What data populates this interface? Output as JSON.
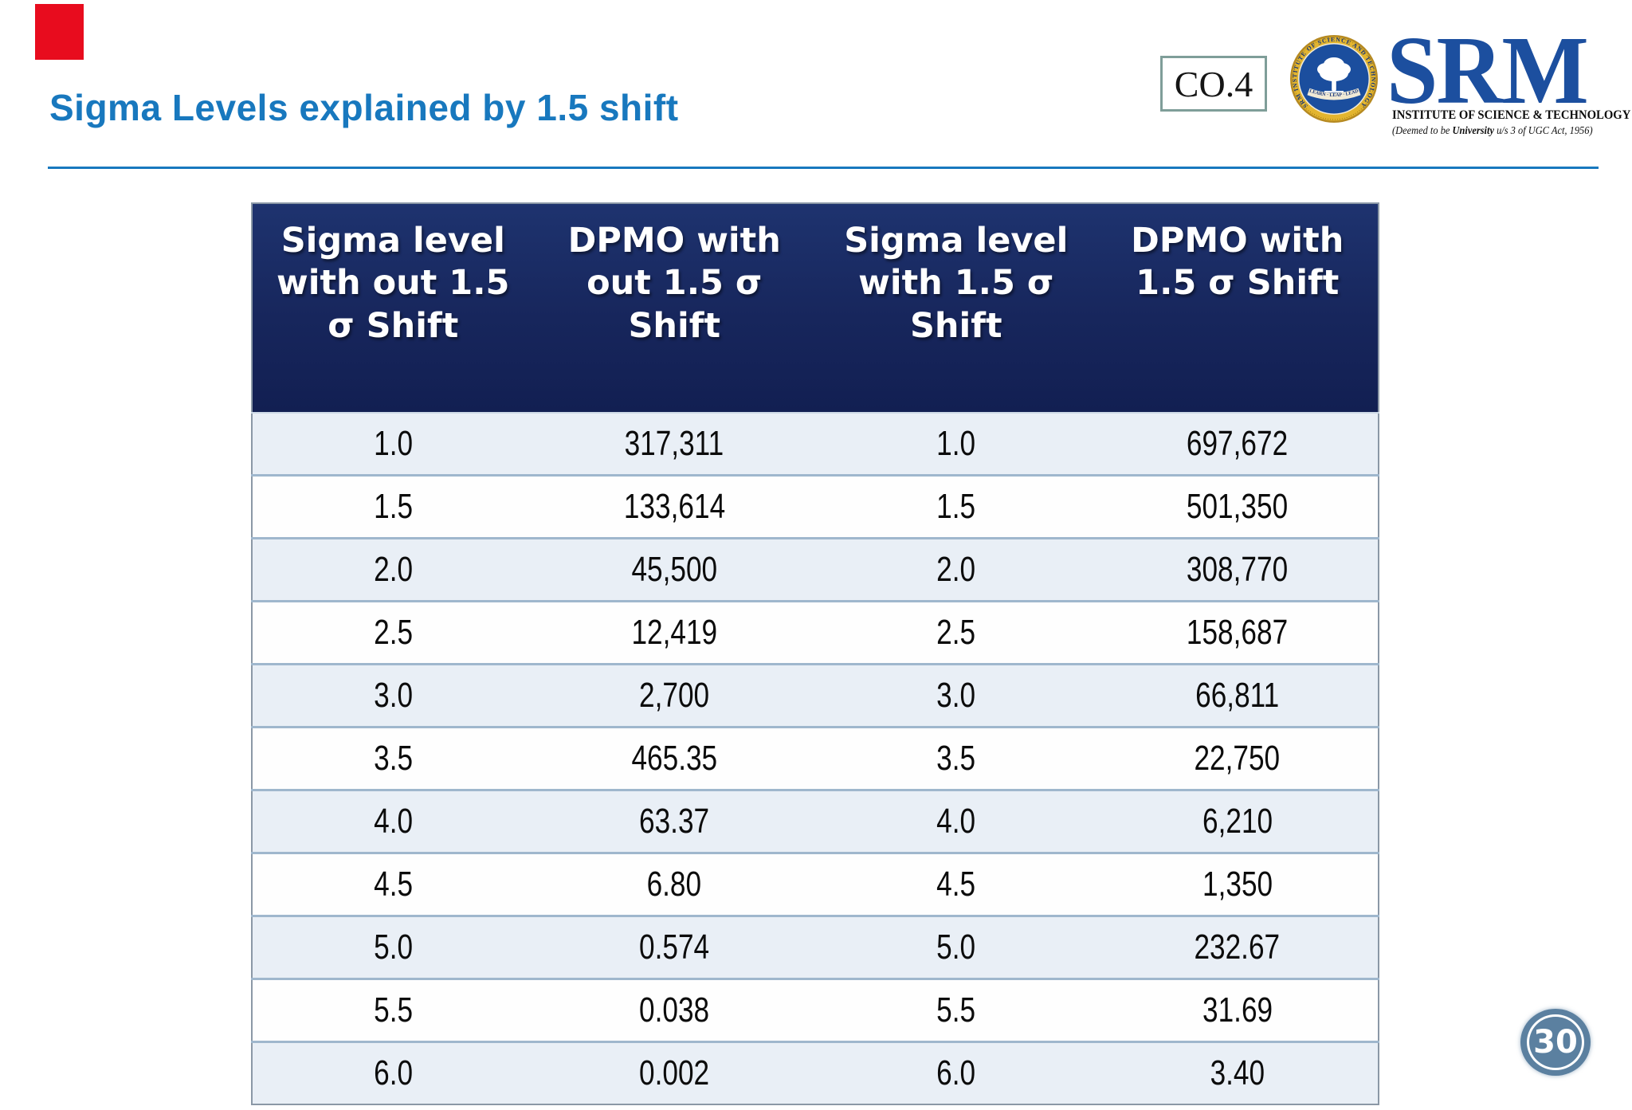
{
  "slide": {
    "title": "Sigma Levels explained by 1.5 shift",
    "co_label": "CO.4",
    "page_number": "30"
  },
  "logo": {
    "wordmark": "SRM",
    "institute_line": "INSTITUTE OF SCIENCE & TECHNOLOGY",
    "deemed_pre": "(Deemed to be ",
    "deemed_bold": "University",
    "deemed_post": " u/s 3 of UGC Act, 1956)",
    "seal_ring_text": "SRM INSTITUTE OF SCIENCE AND TECHNOLOGY",
    "seal_motto": "LEARN · LEAP · LEAD"
  },
  "colors": {
    "accent_blue": "#1878be",
    "header_navy": "#17265c",
    "row_alt": "#e9eff6",
    "red_marker": "#e80c1e",
    "logo_blue": "#1c4f9f",
    "seal_gold": "#e3b52f",
    "page_circle": "#5b80a0"
  },
  "table": {
    "headers": [
      "Sigma level\nwith out 1.5\nσ Shift",
      "DPMO with\nout 1.5 σ\nShift",
      "Sigma level\nwith 1.5 σ\nShift",
      "DPMO with\n1.5 σ Shift"
    ],
    "rows": [
      [
        "1.0",
        "317,311",
        "1.0",
        "697,672"
      ],
      [
        "1.5",
        "133,614",
        "1.5",
        "501,350"
      ],
      [
        "2.0",
        "45,500",
        "2.0",
        "308,770"
      ],
      [
        "2.5",
        "12,419",
        "2.5",
        "158,687"
      ],
      [
        "3.0",
        "2,700",
        "3.0",
        "66,811"
      ],
      [
        "3.5",
        "465.35",
        "3.5",
        "22,750"
      ],
      [
        "4.0",
        "63.37",
        "4.0",
        "6,210"
      ],
      [
        "4.5",
        "6.80",
        "4.5",
        "1,350"
      ],
      [
        "5.0",
        "0.574",
        "5.0",
        "232.67"
      ],
      [
        "5.5",
        "0.038",
        "5.5",
        "31.69"
      ],
      [
        "6.0",
        "0.002",
        "6.0",
        "3.40"
      ]
    ]
  }
}
